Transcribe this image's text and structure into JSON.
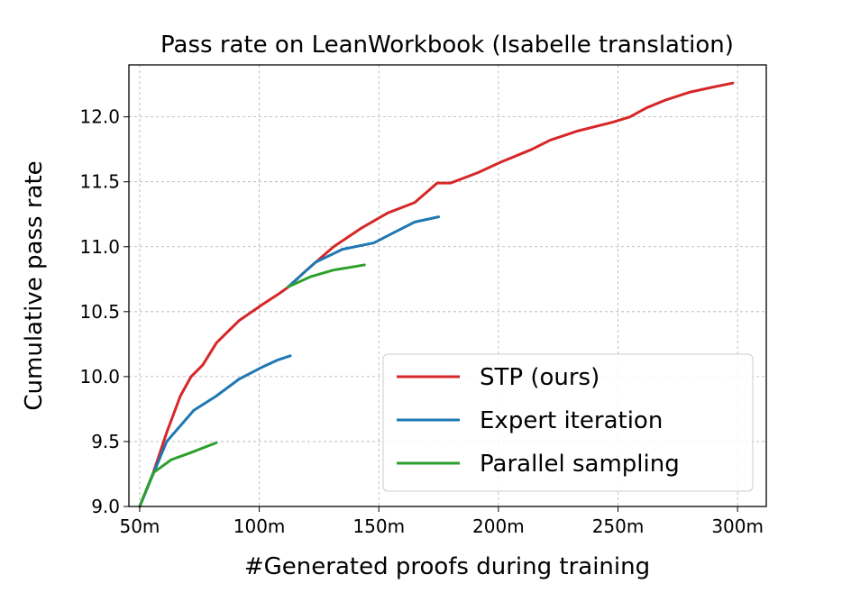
{
  "chart_data": {
    "type": "line",
    "title": "Pass rate on LeanWorkbook (Isabelle translation)",
    "xlabel": "#Generated proofs during training",
    "ylabel": "Cumulative pass rate",
    "xlim": [
      45.5,
      312
    ],
    "ylim": [
      9.0,
      12.4
    ],
    "x_ticks": [
      50,
      100,
      150,
      200,
      250,
      300
    ],
    "x_tick_labels": [
      "50m",
      "100m",
      "150m",
      "200m",
      "250m",
      "300m"
    ],
    "y_ticks": [
      9.0,
      9.5,
      10.0,
      10.5,
      11.0,
      11.5,
      12.0
    ],
    "y_tick_labels": [
      "9.0",
      "9.5",
      "10.0",
      "10.5",
      "11.0",
      "11.5",
      "12.0"
    ],
    "grid": true,
    "legend_position": "lower-right",
    "series": [
      {
        "name": "STP (ours)",
        "color": "#d62728",
        "segments": [
          [
            [
              50,
              9.0
            ],
            [
              55.7,
              9.26
            ],
            [
              61.3,
              9.57
            ],
            [
              67,
              9.85
            ],
            [
              71.5,
              10.0
            ],
            [
              76.4,
              10.09
            ],
            [
              82.1,
              10.26
            ],
            [
              91.5,
              10.43
            ],
            [
              100.9,
              10.55
            ],
            [
              108.4,
              10.64
            ],
            [
              112.2,
              10.69
            ],
            [
              119.8,
              10.82
            ],
            [
              131.1,
              11.0
            ],
            [
              142.4,
              11.14
            ],
            [
              153.7,
              11.26
            ],
            [
              165,
              11.34
            ],
            [
              174.4,
              11.49
            ],
            [
              180,
              11.49
            ],
            [
              191.4,
              11.57
            ],
            [
              200.8,
              11.65
            ],
            [
              214,
              11.75
            ],
            [
              221.6,
              11.82
            ],
            [
              232.9,
              11.89
            ],
            [
              248,
              11.96
            ],
            [
              255,
              12.0
            ],
            [
              262,
              12.07
            ],
            [
              270,
              12.13
            ],
            [
              280,
              12.19
            ],
            [
              290,
              12.23
            ],
            [
              298,
              12.26
            ]
          ]
        ]
      },
      {
        "name": "Expert iteration",
        "color": "#1f77b4",
        "segments": [
          [
            [
              50,
              9.0
            ],
            [
              61.3,
              9.5
            ],
            [
              72.6,
              9.74
            ],
            [
              82,
              9.85
            ],
            [
              91.5,
              9.98
            ],
            [
              100.9,
              10.07
            ],
            [
              108,
              10.13
            ],
            [
              113,
              10.16
            ]
          ],
          [
            [
              112,
              10.69
            ],
            [
              123.5,
              10.88
            ],
            [
              134.8,
              10.98
            ],
            [
              148,
              11.03
            ],
            [
              157.5,
              11.12
            ],
            [
              165,
              11.19
            ],
            [
              175,
              11.23
            ]
          ]
        ]
      },
      {
        "name": "Parallel sampling",
        "color": "#2ca02c",
        "segments": [
          [
            [
              50,
              9.0
            ],
            [
              55.7,
              9.26
            ],
            [
              63.2,
              9.36
            ],
            [
              70.7,
              9.41
            ],
            [
              82,
              9.49
            ]
          ],
          [
            [
              112,
              10.69
            ],
            [
              121.6,
              10.77
            ],
            [
              131,
              10.82
            ],
            [
              144,
              10.86
            ]
          ]
        ]
      }
    ]
  }
}
